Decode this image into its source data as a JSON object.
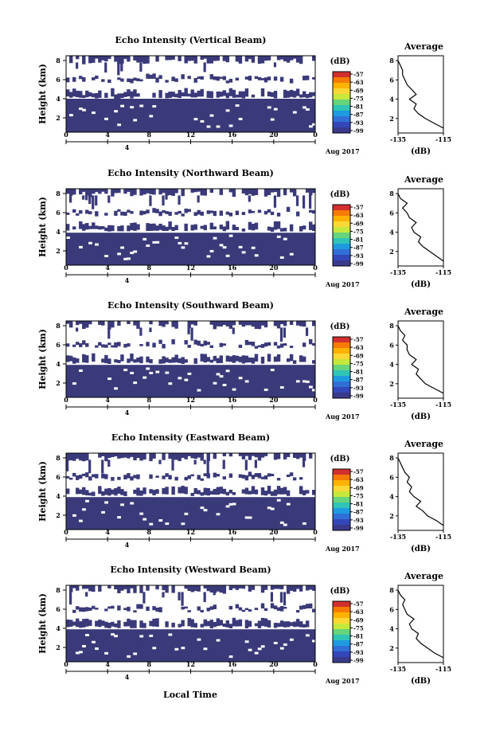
{
  "figure": {
    "x_axis_title": "Local Time",
    "date_label": "Aug 2017",
    "colorbar_unit": "(dB)",
    "colorbar_labels": [
      "-57",
      "-63",
      "-69",
      "-75",
      "-81",
      "-87",
      "-93",
      "-99"
    ],
    "colorbar_colors": [
      "#d32f2f",
      "#f57c00",
      "#ffb300",
      "#fdd835",
      "#c6e83a",
      "#66d47a",
      "#2ec4b6",
      "#1e9be0",
      "#2f6fd6",
      "#3347b8",
      "#3a3a8c"
    ],
    "field_color": "#3a3a7a",
    "profile_title": "Average",
    "profile_unit": "(dB)",
    "profile_xticks": [
      "-135",
      "-115"
    ],
    "height_ticks": [
      "2",
      "4",
      "6",
      "8"
    ],
    "time_ticks": [
      "0",
      "4",
      "8",
      "12",
      "16",
      "20",
      "0"
    ],
    "day_marker": "4",
    "ylabel": "Height (km)"
  },
  "chart_data": [
    {
      "type": "heatmap",
      "title": "Echo Intensity (Vertical Beam)",
      "xlabel": "",
      "ylabel": "Height (km)",
      "xlim": [
        0,
        24
      ],
      "ylim": [
        0.5,
        8.5
      ],
      "colorbar_range": [
        -99,
        -57
      ],
      "profile": {
        "title": "Average",
        "xlabel": "(dB)",
        "xlim": [
          -135,
          -115
        ],
        "heights": [
          1.0,
          1.5,
          2.0,
          2.5,
          3.0,
          3.5,
          4.0,
          4.5,
          5.0,
          5.5,
          6.0,
          6.5,
          7.0,
          7.5,
          8.0
        ],
        "values": [
          -115,
          -119,
          -123,
          -126,
          -128,
          -127,
          -130,
          -127,
          -129,
          -131,
          -132,
          -133,
          -133,
          -134,
          -135
        ]
      }
    },
    {
      "type": "heatmap",
      "title": "Echo Intensity (Northward Beam)",
      "xlabel": "",
      "ylabel": "Height (km)",
      "xlim": [
        0,
        24
      ],
      "ylim": [
        0.5,
        8.5
      ],
      "colorbar_range": [
        -99,
        -57
      ],
      "profile": {
        "title": "Average",
        "xlabel": "(dB)",
        "xlim": [
          -135,
          -115
        ],
        "heights": [
          1.0,
          1.5,
          2.0,
          2.5,
          3.0,
          3.5,
          4.0,
          4.5,
          5.0,
          5.5,
          6.0,
          6.5,
          7.0,
          7.5,
          8.0
        ],
        "values": [
          -115,
          -118,
          -121,
          -124,
          -126,
          -125,
          -128,
          -129,
          -127,
          -130,
          -131,
          -133,
          -131,
          -134,
          -135
        ]
      }
    },
    {
      "type": "heatmap",
      "title": "Echo Intensity (Southward Beam)",
      "xlabel": "",
      "ylabel": "Height (km)",
      "xlim": [
        0,
        24
      ],
      "ylim": [
        0.5,
        8.5
      ],
      "colorbar_range": [
        -99,
        -57
      ],
      "profile": {
        "title": "Average",
        "xlabel": "(dB)",
        "xlim": [
          -135,
          -115
        ],
        "heights": [
          1.0,
          1.5,
          2.0,
          2.5,
          3.0,
          3.5,
          4.0,
          4.5,
          5.0,
          5.5,
          6.0,
          6.5,
          7.0,
          7.5,
          8.0
        ],
        "values": [
          -115,
          -119,
          -123,
          -125,
          -127,
          -126,
          -129,
          -127,
          -130,
          -131,
          -131,
          -133,
          -132,
          -134,
          -135
        ]
      }
    },
    {
      "type": "heatmap",
      "title": "Echo Intensity (Eastward Beam)",
      "xlabel": "",
      "ylabel": "Height (km)",
      "xlim": [
        0,
        24
      ],
      "ylim": [
        0.5,
        8.5
      ],
      "colorbar_range": [
        -99,
        -57
      ],
      "profile": {
        "title": "Average",
        "xlabel": "(dB)",
        "xlim": [
          -135,
          -115
        ],
        "heights": [
          1.0,
          1.5,
          2.0,
          2.5,
          3.0,
          3.5,
          4.0,
          4.5,
          5.0,
          5.5,
          6.0,
          6.5,
          7.0,
          7.5,
          8.0
        ],
        "values": [
          -115,
          -118,
          -122,
          -124,
          -127,
          -125,
          -128,
          -130,
          -129,
          -131,
          -130,
          -132,
          -133,
          -134,
          -135
        ]
      }
    },
    {
      "type": "heatmap",
      "title": "Echo Intensity (Westward Beam)",
      "xlabel": "Local Time",
      "ylabel": "Height (km)",
      "xlim": [
        0,
        24
      ],
      "ylim": [
        0.5,
        8.5
      ],
      "colorbar_range": [
        -99,
        -57
      ],
      "profile": {
        "title": "Average",
        "xlabel": "(dB)",
        "xlim": [
          -135,
          -115
        ],
        "heights": [
          1.0,
          1.5,
          2.0,
          2.5,
          3.0,
          3.5,
          4.0,
          4.5,
          5.0,
          5.5,
          6.0,
          6.5,
          7.0,
          7.5,
          8.0
        ],
        "values": [
          -115,
          -119,
          -122,
          -125,
          -127,
          -126,
          -129,
          -130,
          -128,
          -131,
          -132,
          -133,
          -132,
          -134,
          -135
        ]
      }
    }
  ]
}
